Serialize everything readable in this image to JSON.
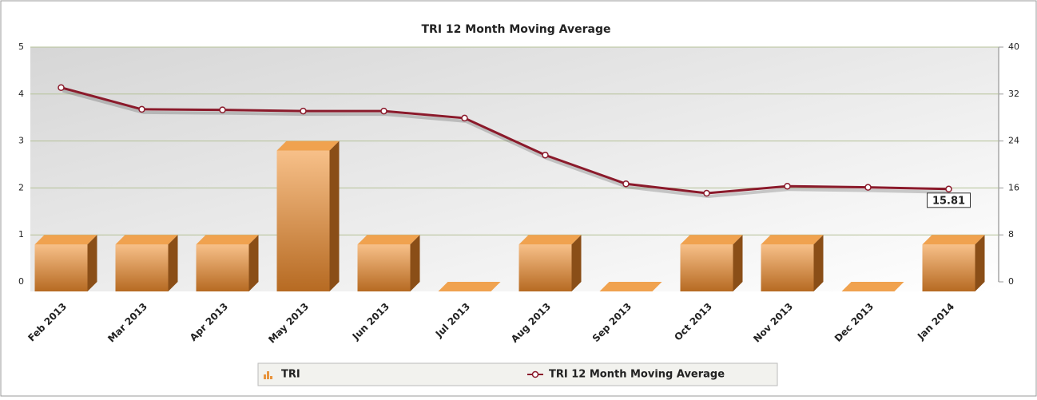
{
  "chart_data": {
    "type": "combo",
    "title": "TRI 12 Month Moving Average",
    "categories": [
      "Feb 2013",
      "Mar 2013",
      "Apr 2013",
      "May 2013",
      "Jun 2013",
      "Jul 2013",
      "Aug 2013",
      "Sep 2013",
      "Oct 2013",
      "Nov 2013",
      "Dec 2013",
      "Jan 2014"
    ],
    "series": [
      {
        "name": "TRI",
        "type": "bar",
        "color": "#e8953f",
        "values": [
          1,
          1,
          1,
          3,
          1,
          0,
          1,
          0,
          1,
          1,
          0,
          1
        ]
      },
      {
        "name": "TRI 12 Month Moving Average",
        "type": "line",
        "axis": "y2",
        "color": "#8b1a2b",
        "values": [
          33.1,
          29.4,
          29.3,
          29.1,
          29.1,
          27.9,
          21.6,
          16.7,
          15.1,
          16.3,
          16.1,
          15.81
        ],
        "value_labels": [
          null,
          null,
          null,
          null,
          null,
          null,
          null,
          null,
          null,
          null,
          null,
          "15.81"
        ]
      }
    ],
    "ylim": [
      0,
      5
    ],
    "yticks": [
      0,
      1,
      2,
      3,
      4,
      5
    ],
    "y2lim": [
      0,
      40
    ],
    "y2ticks": [
      0,
      8,
      16,
      24,
      32,
      40
    ],
    "grid": true,
    "legend": "bottom"
  }
}
